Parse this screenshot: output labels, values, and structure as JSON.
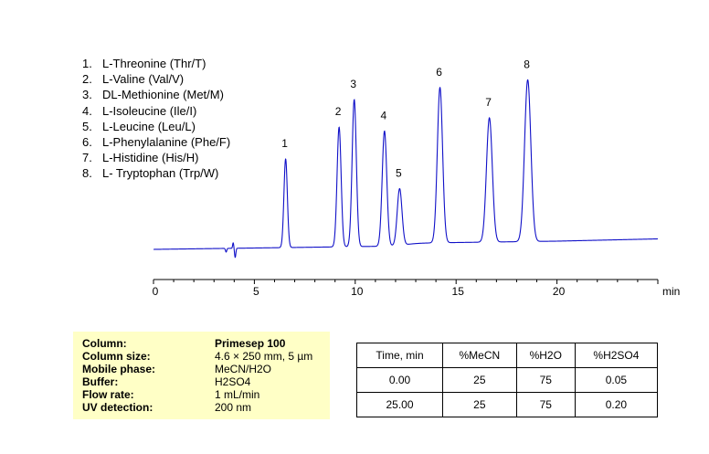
{
  "chart_data": {
    "type": "line",
    "title": "",
    "xlabel": "min",
    "xlim": [
      0,
      25
    ],
    "xticks": [
      0,
      5,
      10,
      15,
      20
    ],
    "baseline": {
      "start": 3,
      "end": 9,
      "rise_at": 12.5,
      "rise": 3,
      "max_at_25": 13
    },
    "peaks": [
      {
        "label": "1",
        "rt": 6.55,
        "height": 97
      },
      {
        "label": "2",
        "rt": 9.2,
        "height": 131
      },
      {
        "label": "3",
        "rt": 9.95,
        "height": 161
      },
      {
        "label": "4",
        "rt": 11.45,
        "height": 126
      },
      {
        "label": "5",
        "rt": 12.2,
        "height": 62
      },
      {
        "label": "6",
        "rt": 14.2,
        "height": 170
      },
      {
        "label": "7",
        "rt": 16.65,
        "height": 136
      },
      {
        "label": "8",
        "rt": 18.55,
        "height": 177
      }
    ],
    "color": "#1010c8"
  },
  "legend": [
    {
      "num": "1.",
      "name": "L-Threonine (Thr/T)"
    },
    {
      "num": "2.",
      "name": "L-Valine (Val/V)"
    },
    {
      "num": "3.",
      "name": "DL-Methionine (Met/M)"
    },
    {
      "num": "4.",
      "name": "L-Isoleucine (Ile/I)"
    },
    {
      "num": "5.",
      "name": "L-Leucine (Leu/L)"
    },
    {
      "num": "6.",
      "name": "L-Phenylalanine  (Phe/F)"
    },
    {
      "num": "7.",
      "name": "L-Histidine (His/H)"
    },
    {
      "num": "8.",
      "name": "L- Tryptophan (Trp/W)"
    }
  ],
  "conditions": [
    {
      "key": "Column:",
      "value": "Primesep 100"
    },
    {
      "key": "Column size:",
      "value": "4.6 × 250 mm, 5 µm"
    },
    {
      "key": "Mobile phase:",
      "value": "MeCN/H2O"
    },
    {
      "key": "Buffer:",
      "value": "H2SO4"
    },
    {
      "key": "Flow rate:",
      "value": "1 mL/min"
    },
    {
      "key": "UV detection:",
      "value": "200 nm"
    }
  ],
  "gradient": {
    "headers": [
      "Time, min",
      "%MeCN",
      "%H2O",
      "%H2SO4"
    ],
    "rows": [
      [
        "0.00",
        "25",
        "75",
        "0.05"
      ],
      [
        "25.00",
        "25",
        "75",
        "0.20"
      ]
    ]
  }
}
